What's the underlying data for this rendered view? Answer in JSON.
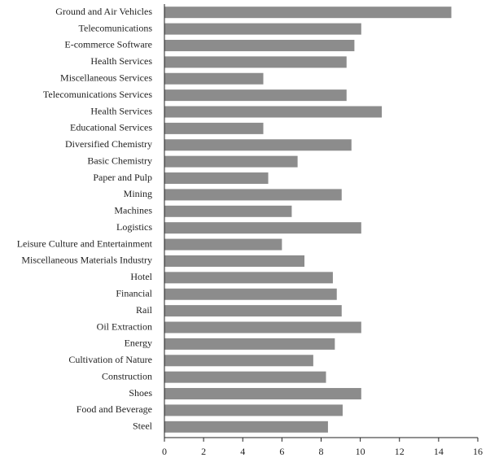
{
  "chart_data": {
    "type": "bar",
    "orientation": "horizontal",
    "categories": [
      "Ground and Air Vehicles",
      "Telecomunications",
      "E-commerce Software",
      "Health Services",
      "Miscellaneous Services",
      "Telecomunications Services",
      "Health Services",
      "Educational Services",
      "Diversified Chemistry",
      "Basic Chemistry",
      "Paper and Pulp",
      "Mining",
      "Machines",
      "Logistics",
      "Leisure Culture and Entertainment",
      "Miscellaneous Materials Industry",
      "Hotel",
      "Financial",
      "Rail",
      "Oil Extraction",
      "Energy",
      "Cultivation of Nature",
      "Construction",
      "Shoes",
      "Food and Beverage",
      "Steel"
    ],
    "values": [
      14.65,
      10.05,
      9.7,
      9.3,
      5.05,
      9.3,
      11.1,
      5.05,
      9.55,
      6.8,
      5.3,
      9.05,
      6.5,
      10.05,
      6.0,
      7.15,
      8.6,
      8.8,
      9.05,
      10.05,
      8.7,
      7.6,
      8.25,
      10.05,
      9.1,
      8.35
    ],
    "color": "#8c8c8c",
    "xlim": [
      0,
      16
    ],
    "xticks": [
      0,
      2,
      4,
      6,
      8,
      10,
      12,
      14,
      16
    ],
    "grid": false
  }
}
